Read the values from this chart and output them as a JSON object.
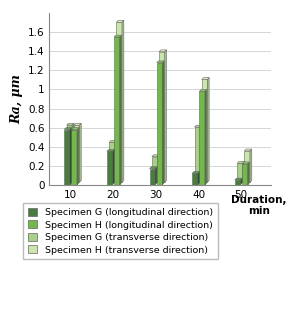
{
  "categories": [
    10,
    20,
    30,
    40,
    50
  ],
  "series": {
    "G_long": [
      0.58,
      0.35,
      0.17,
      0.12,
      0.05
    ],
    "H_long": [
      0.58,
      1.55,
      1.28,
      0.98,
      0.22
    ],
    "G_trans": [
      0.6,
      0.42,
      0.27,
      0.58,
      0.2
    ],
    "H_trans": [
      0.6,
      1.68,
      1.37,
      1.08,
      0.33
    ]
  },
  "colors": {
    "G_long": "#4a7c3f",
    "H_long": "#72b84a",
    "G_trans": "#aacf88",
    "H_trans": "#cce5ac"
  },
  "side_colors": {
    "G_long": "#2e5028",
    "H_long": "#4a7a30",
    "G_trans": "#7aaa60",
    "H_trans": "#a0c080"
  },
  "top_colors": {
    "G_long": "#5a9a4f",
    "H_long": "#88cc60",
    "G_trans": "#bada98",
    "H_trans": "#ddf0c0"
  },
  "legend_labels": [
    "Specimen G (longitudinal direction)",
    "Specimen H (longitudinal direction)",
    "Specimen G (transverse direction)",
    "Specimen H (transverse direction)"
  ],
  "ylabel": "Ra, μm",
  "xlabel": "Duration,\nmin",
  "ylim": [
    0,
    1.8
  ],
  "yticks": [
    0,
    0.2,
    0.4,
    0.6,
    0.8,
    1.0,
    1.2,
    1.4,
    1.6
  ],
  "ytick_labels": [
    "0",
    "0.2",
    "0.4",
    "0.6",
    "0.8",
    "1",
    "1.2",
    "1.4",
    "1.6"
  ],
  "background_color": "#ffffff"
}
